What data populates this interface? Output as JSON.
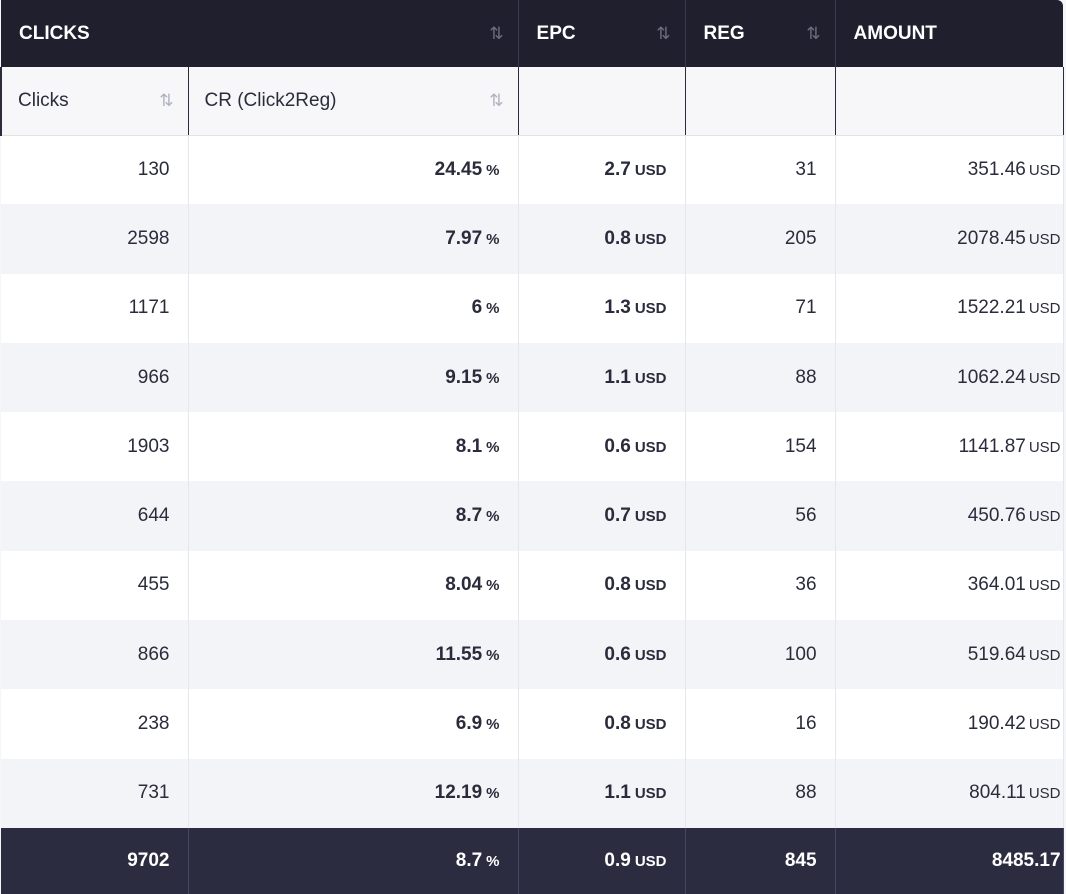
{
  "headers": {
    "clicks": "CLICKS",
    "epc": "EPC",
    "reg": "REG",
    "amount": "AMOUNT",
    "sort_glyph": "⇅",
    "sub_clicks": "Clicks",
    "sub_cr": "CR (Click2Reg)"
  },
  "units": {
    "percent": "%",
    "currency": "USD"
  },
  "rows": [
    {
      "clicks": "130",
      "cr": "24.45",
      "epc": "2.7",
      "reg": "31",
      "amount": "351.46"
    },
    {
      "clicks": "2598",
      "cr": "7.97",
      "epc": "0.8",
      "reg": "205",
      "amount": "2078.45"
    },
    {
      "clicks": "1171",
      "cr": "6",
      "epc": "1.3",
      "reg": "71",
      "amount": "1522.21"
    },
    {
      "clicks": "966",
      "cr": "9.15",
      "epc": "1.1",
      "reg": "88",
      "amount": "1062.24"
    },
    {
      "clicks": "1903",
      "cr": "8.1",
      "epc": "0.6",
      "reg": "154",
      "amount": "1141.87"
    },
    {
      "clicks": "644",
      "cr": "8.7",
      "epc": "0.7",
      "reg": "56",
      "amount": "450.76"
    },
    {
      "clicks": "455",
      "cr": "8.04",
      "epc": "0.8",
      "reg": "36",
      "amount": "364.01"
    },
    {
      "clicks": "866",
      "cr": "11.55",
      "epc": "0.6",
      "reg": "100",
      "amount": "519.64"
    },
    {
      "clicks": "238",
      "cr": "6.9",
      "epc": "0.8",
      "reg": "16",
      "amount": "190.42"
    },
    {
      "clicks": "731",
      "cr": "12.19",
      "epc": "1.1",
      "reg": "88",
      "amount": "804.11"
    }
  ],
  "totals": {
    "clicks": "9702",
    "cr": "8.7",
    "epc": "0.9",
    "reg": "845",
    "amount": "8485.17"
  },
  "colors": {
    "header_bg": "#1f1f2e",
    "footer_bg": "#2c2c40",
    "stripe": "#f3f4f8"
  }
}
